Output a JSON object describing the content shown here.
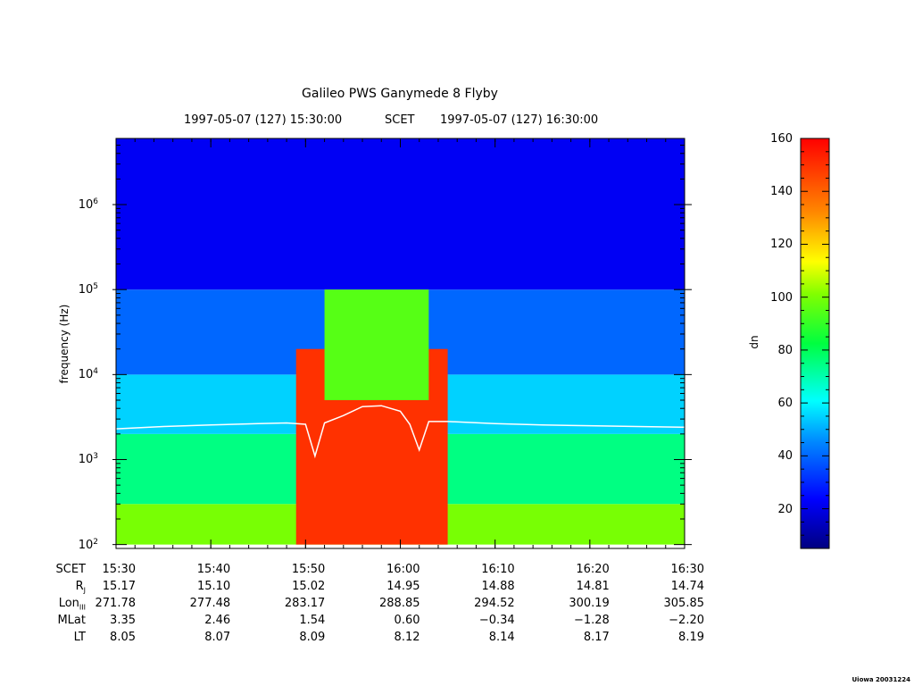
{
  "chart_data": {
    "type": "heatmap",
    "title": "Galileo PWS Ganymede 8 Flyby",
    "header": {
      "start": "1997-05-07 (127) 15:30:00",
      "mid": "SCET",
      "end": "1997-05-07 (127) 16:30:00"
    },
    "xlabel": "SCET",
    "ylabel": "frequency (Hz)",
    "y_scale": "log",
    "ylim": [
      90,
      6000000
    ],
    "y_ticks": [
      {
        "base": "10",
        "exp": "2",
        "value": 100
      },
      {
        "base": "10",
        "exp": "3",
        "value": 1000
      },
      {
        "base": "10",
        "exp": "4",
        "value": 10000
      },
      {
        "base": "10",
        "exp": "5",
        "value": 100000
      },
      {
        "base": "10",
        "exp": "6",
        "value": 1000000
      }
    ],
    "x_ticks": [
      "15:30",
      "15:40",
      "15:50",
      "16:00",
      "16:10",
      "16:20",
      "16:30"
    ],
    "colorbar": {
      "label": "dn",
      "range": [
        5,
        160
      ],
      "ticks": [
        20,
        40,
        60,
        80,
        100,
        120,
        140,
        160
      ]
    },
    "intensity_regions": [
      {
        "t_start": "15:49",
        "t_end": "16:05",
        "f_min": 100,
        "f_max": 20000,
        "dn": 150
      },
      {
        "t_start": "15:52",
        "t_end": "16:03",
        "f_min": 5000,
        "f_max": 100000,
        "dn": 95
      },
      {
        "t_start": "15:30",
        "t_end": "16:30",
        "f_min": 100,
        "f_max": 300,
        "dn": 100
      },
      {
        "t_start": "15:30",
        "t_end": "16:30",
        "f_min": 300,
        "f_max": 2000,
        "dn": 75
      },
      {
        "t_start": "15:30",
        "t_end": "16:30",
        "f_min": 2000,
        "f_max": 10000,
        "dn": 55
      },
      {
        "t_start": "15:30",
        "t_end": "16:30",
        "f_min": 10000,
        "f_max": 100000,
        "dn": 40
      },
      {
        "t_start": "15:30",
        "t_end": "16:30",
        "f_min": 100000,
        "f_max": 6000000,
        "dn": 22
      }
    ],
    "overlay_line": {
      "color": "#ffffff",
      "points": [
        [
          "15:30",
          2300
        ],
        [
          "15:35",
          2450
        ],
        [
          "15:40",
          2550
        ],
        [
          "15:45",
          2650
        ],
        [
          "15:48",
          2700
        ],
        [
          "15:50",
          2600
        ],
        [
          "15:51",
          1100
        ],
        [
          "15:52",
          2700
        ],
        [
          "15:54",
          3300
        ],
        [
          "15:56",
          4200
        ],
        [
          "15:58",
          4300
        ],
        [
          "16:00",
          3700
        ],
        [
          "16:01",
          2600
        ],
        [
          "16:02",
          1300
        ],
        [
          "16:03",
          2800
        ],
        [
          "16:05",
          2800
        ],
        [
          "16:10",
          2650
        ],
        [
          "16:15",
          2550
        ],
        [
          "16:20",
          2500
        ],
        [
          "16:25",
          2450
        ],
        [
          "16:30",
          2400
        ]
      ]
    }
  },
  "ephemeris": {
    "rows": [
      {
        "label": "SCET",
        "sub": "",
        "values": [
          "15:30",
          "15:40",
          "15:50",
          "16:00",
          "16:10",
          "16:20",
          "16:30"
        ]
      },
      {
        "label": "R",
        "sub": "J",
        "values": [
          "15.17",
          "15.10",
          "15.02",
          "14.95",
          "14.88",
          "14.81",
          "14.74"
        ]
      },
      {
        "label": "Lon",
        "sub": "III",
        "values": [
          "271.78",
          "277.48",
          "283.17",
          "288.85",
          "294.52",
          "300.19",
          "305.85"
        ]
      },
      {
        "label": "MLat",
        "sub": "",
        "values": [
          "3.35",
          "2.46",
          "1.54",
          "0.60",
          "−0.34",
          "−1.28",
          "−2.20"
        ]
      },
      {
        "label": "LT",
        "sub": "",
        "values": [
          "8.05",
          "8.07",
          "8.09",
          "8.12",
          "8.14",
          "8.17",
          "8.19"
        ]
      }
    ]
  },
  "footer": "Uiowa 20031224"
}
